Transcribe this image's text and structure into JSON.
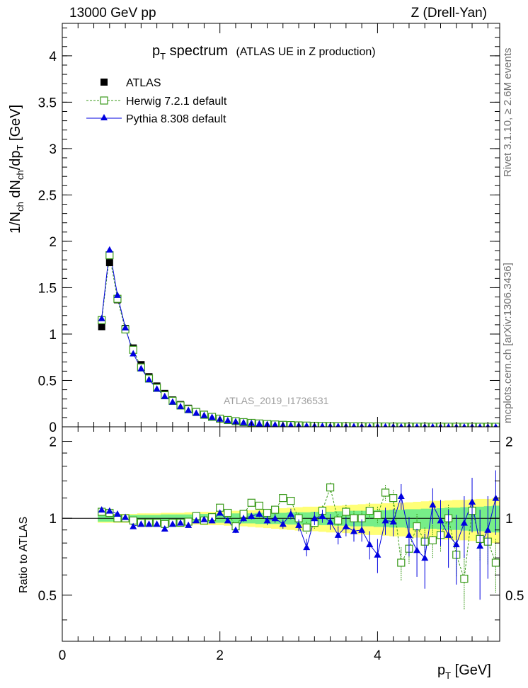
{
  "header": {
    "left": "13000 GeV pp",
    "right": "Z (Drell-Yan)",
    "side_top": "Rivet 3.1.10, ≥ 2.6M events",
    "side_bottom": "mcplots.cern.ch [arXiv:1306.3436]"
  },
  "colors": {
    "data": "#000000",
    "herwig": "#3a9a1a",
    "pythia": "#0000e0",
    "band_yellow": "#ffff77",
    "band_green": "#77ee88",
    "axis": "#000000",
    "side_text": "#707070",
    "watermark": "#a0a0a0"
  },
  "chart_data": [
    {
      "type": "scatter",
      "panel": "main",
      "title_main": "p",
      "title_sub": "T",
      "title_rest": " spectrum",
      "title_note": "(ATLAS UE in Z production)",
      "ylabel": "1/N_ch dN_ch/dp_T [GeV]",
      "watermark": "ATLAS_2019_I1736531",
      "xlim": [
        0,
        5.55
      ],
      "ylim": [
        0,
        4.35
      ],
      "yticks": [
        0,
        0.5,
        1,
        1.5,
        2,
        2.5,
        3,
        3.5,
        4
      ],
      "ytick_labels": [
        "0",
        "0.5",
        "1",
        "1.5",
        "2",
        "2.5",
        "3",
        "3.5",
        "4"
      ],
      "legend_position": "top-left",
      "x": [
        0.5,
        0.6,
        0.7,
        0.8,
        0.9,
        1.0,
        1.1,
        1.2,
        1.3,
        1.4,
        1.5,
        1.6,
        1.7,
        1.8,
        1.9,
        2.0,
        2.1,
        2.2,
        2.3,
        2.4,
        2.5,
        2.6,
        2.7,
        2.8,
        2.9,
        3.0,
        3.1,
        3.2,
        3.3,
        3.4,
        3.5,
        3.6,
        3.7,
        3.8,
        3.9,
        4.0,
        4.1,
        4.2,
        4.3,
        4.4,
        4.5,
        4.6,
        4.7,
        4.8,
        4.9,
        5.0,
        5.1,
        5.2,
        5.3,
        5.4,
        5.5
      ],
      "series": [
        {
          "name": "ATLAS",
          "marker": "filled-square",
          "values": [
            1.08,
            1.77,
            1.37,
            1.06,
            0.85,
            0.67,
            0.54,
            0.44,
            0.36,
            0.29,
            0.24,
            0.2,
            0.165,
            0.135,
            0.11,
            0.09,
            0.075,
            0.063,
            0.052,
            0.044,
            0.037,
            0.031,
            0.026,
            0.022,
            0.019,
            0.016,
            0.014,
            0.012,
            0.01,
            0.009,
            0.008,
            0.007,
            0.006,
            0.005,
            0.0045,
            0.004,
            0.0035,
            0.003,
            0.0027,
            0.0024,
            0.0021,
            0.0019,
            0.0017,
            0.0015,
            0.0013,
            0.0012,
            0.0011,
            0.001,
            0.0009,
            0.0008,
            0.0007
          ]
        },
        {
          "name": "Herwig 7.2.1 default",
          "marker": "open-square",
          "line": "dashed",
          "values": [
            1.15,
            1.85,
            1.38,
            1.05,
            0.83,
            0.64,
            0.52,
            0.42,
            0.34,
            0.28,
            0.23,
            0.19,
            0.16,
            0.13,
            0.107,
            0.088,
            0.073,
            0.061,
            0.05,
            0.042,
            0.036,
            0.03,
            0.025,
            0.021,
            0.018,
            0.015,
            0.013,
            0.011,
            0.0095,
            0.0085,
            0.0075,
            0.0065,
            0.0058,
            0.005,
            0.0044,
            0.0039,
            0.0034,
            0.003,
            0.0026,
            0.0023,
            0.0021,
            0.0018,
            0.0016,
            0.0014,
            0.0013,
            0.0011,
            0.001,
            0.0009,
            0.0008,
            0.0007,
            0.0006
          ]
        },
        {
          "name": "Pythia 8.308 default",
          "marker": "filled-triangle",
          "line": "solid",
          "values": [
            1.17,
            1.91,
            1.42,
            1.07,
            0.79,
            0.63,
            0.51,
            0.41,
            0.33,
            0.27,
            0.22,
            0.18,
            0.15,
            0.125,
            0.105,
            0.086,
            0.07,
            0.058,
            0.048,
            0.04,
            0.034,
            0.028,
            0.023,
            0.02,
            0.017,
            0.014,
            0.012,
            0.01,
            0.009,
            0.008,
            0.007,
            0.006,
            0.0055,
            0.0048,
            0.0042,
            0.0037,
            0.0033,
            0.0029,
            0.0025,
            0.0022,
            0.002,
            0.0017,
            0.0015,
            0.0013,
            0.0012,
            0.001,
            0.0009,
            0.0008,
            0.0007,
            0.0006,
            0.0005
          ]
        }
      ]
    },
    {
      "type": "scatter",
      "panel": "ratio",
      "ylabel": "Ratio to ATLAS",
      "xlabel_main": "p",
      "xlabel_sub": "T",
      "xlabel_rest": " [GeV]",
      "xlim": [
        0,
        5.55
      ],
      "ylim": [
        0.33,
        2.28
      ],
      "xticks": [
        0,
        2,
        4
      ],
      "xtick_labels": [
        "0",
        "2",
        "4"
      ],
      "yticks": [
        0.5,
        1,
        2
      ],
      "ytick_labels": [
        "0.5",
        "1",
        "2"
      ],
      "x": [
        0.5,
        0.6,
        0.7,
        0.8,
        0.9,
        1.0,
        1.1,
        1.2,
        1.3,
        1.4,
        1.5,
        1.6,
        1.7,
        1.8,
        1.9,
        2.0,
        2.1,
        2.2,
        2.3,
        2.4,
        2.5,
        2.6,
        2.7,
        2.8,
        2.9,
        3.0,
        3.1,
        3.2,
        3.3,
        3.4,
        3.5,
        3.6,
        3.7,
        3.8,
        3.9,
        4.0,
        4.1,
        4.2,
        4.3,
        4.4,
        4.5,
        4.6,
        4.7,
        4.8,
        4.9,
        5.0,
        5.1,
        5.2,
        5.3,
        5.4,
        5.5
      ],
      "band_green_half": [
        0.03,
        0.03,
        0.03,
        0.03,
        0.03,
        0.03,
        0.03,
        0.03,
        0.035,
        0.035,
        0.035,
        0.035,
        0.04,
        0.04,
        0.04,
        0.04,
        0.04,
        0.045,
        0.045,
        0.045,
        0.05,
        0.05,
        0.05,
        0.05,
        0.055,
        0.055,
        0.055,
        0.06,
        0.06,
        0.06,
        0.065,
        0.065,
        0.07,
        0.07,
        0.07,
        0.075,
        0.075,
        0.08,
        0.08,
        0.085,
        0.085,
        0.09,
        0.09,
        0.095,
        0.1,
        0.1,
        0.105,
        0.11,
        0.11,
        0.115,
        0.12
      ],
      "band_yellow_half": [
        0.04,
        0.04,
        0.04,
        0.04,
        0.04,
        0.045,
        0.045,
        0.045,
        0.05,
        0.05,
        0.05,
        0.055,
        0.055,
        0.06,
        0.06,
        0.06,
        0.065,
        0.07,
        0.07,
        0.075,
        0.08,
        0.085,
        0.09,
        0.095,
        0.1,
        0.105,
        0.11,
        0.11,
        0.115,
        0.12,
        0.12,
        0.125,
        0.13,
        0.135,
        0.14,
        0.14,
        0.145,
        0.15,
        0.15,
        0.155,
        0.16,
        0.165,
        0.17,
        0.17,
        0.175,
        0.18,
        0.18,
        0.185,
        0.19,
        0.19,
        0.2
      ],
      "series": [
        {
          "name": "Herwig 7.2.1 default",
          "values": [
            1.06,
            1.05,
            1.0,
            1.0,
            0.98,
            0.96,
            0.96,
            0.96,
            0.95,
            0.96,
            0.96,
            0.97,
            1.02,
            0.98,
            1.01,
            1.1,
            1.05,
            0.93,
            1.04,
            1.15,
            1.12,
            1.05,
            1.08,
            1.2,
            1.17,
            1.0,
            0.92,
            0.96,
            1.07,
            1.32,
            0.98,
            1.06,
            1.0,
            1.0,
            1.07,
            1.03,
            1.26,
            1.2,
            0.67,
            0.76,
            0.93,
            0.81,
            0.82,
            0.86,
            1.0,
            0.72,
            0.58,
            1.07,
            0.83,
            0.81,
            0.67
          ],
          "errors": [
            0.01,
            0.01,
            0.01,
            0.01,
            0.01,
            0.01,
            0.01,
            0.01,
            0.01,
            0.01,
            0.01,
            0.01,
            0.01,
            0.01,
            0.015,
            0.02,
            0.02,
            0.02,
            0.02,
            0.03,
            0.03,
            0.03,
            0.04,
            0.04,
            0.04,
            0.05,
            0.05,
            0.05,
            0.05,
            0.06,
            0.06,
            0.07,
            0.07,
            0.07,
            0.08,
            0.08,
            0.09,
            0.09,
            0.1,
            0.1,
            0.11,
            0.11,
            0.12,
            0.12,
            0.13,
            0.13,
            0.14,
            0.14,
            0.15,
            0.15,
            0.16
          ]
        },
        {
          "name": "Pythia 8.308 default",
          "values": [
            1.08,
            1.07,
            1.04,
            1.01,
            0.93,
            0.95,
            0.95,
            0.95,
            0.91,
            0.95,
            0.96,
            0.94,
            0.98,
            0.99,
            0.98,
            1.05,
            0.98,
            0.9,
            1.0,
            1.02,
            1.04,
            0.98,
            1.0,
            0.95,
            1.04,
            0.94,
            0.77,
            1.0,
            1.02,
            0.97,
            0.86,
            0.93,
            0.89,
            0.9,
            0.79,
            0.72,
            0.98,
            0.97,
            1.22,
            0.86,
            0.75,
            0.7,
            1.13,
            0.98,
            0.86,
            0.79,
            0.96,
            1.16,
            0.78,
            0.9,
            1.2
          ],
          "errors": [
            0.01,
            0.01,
            0.01,
            0.01,
            0.01,
            0.01,
            0.01,
            0.01,
            0.01,
            0.01,
            0.01,
            0.015,
            0.015,
            0.02,
            0.02,
            0.02,
            0.02,
            0.025,
            0.03,
            0.03,
            0.03,
            0.04,
            0.04,
            0.04,
            0.05,
            0.05,
            0.06,
            0.06,
            0.06,
            0.07,
            0.07,
            0.08,
            0.08,
            0.09,
            0.1,
            0.11,
            0.12,
            0.12,
            0.14,
            0.15,
            0.16,
            0.17,
            0.18,
            0.2,
            0.22,
            0.24,
            0.26,
            0.28,
            0.3,
            0.32,
            0.34
          ]
        }
      ]
    }
  ]
}
